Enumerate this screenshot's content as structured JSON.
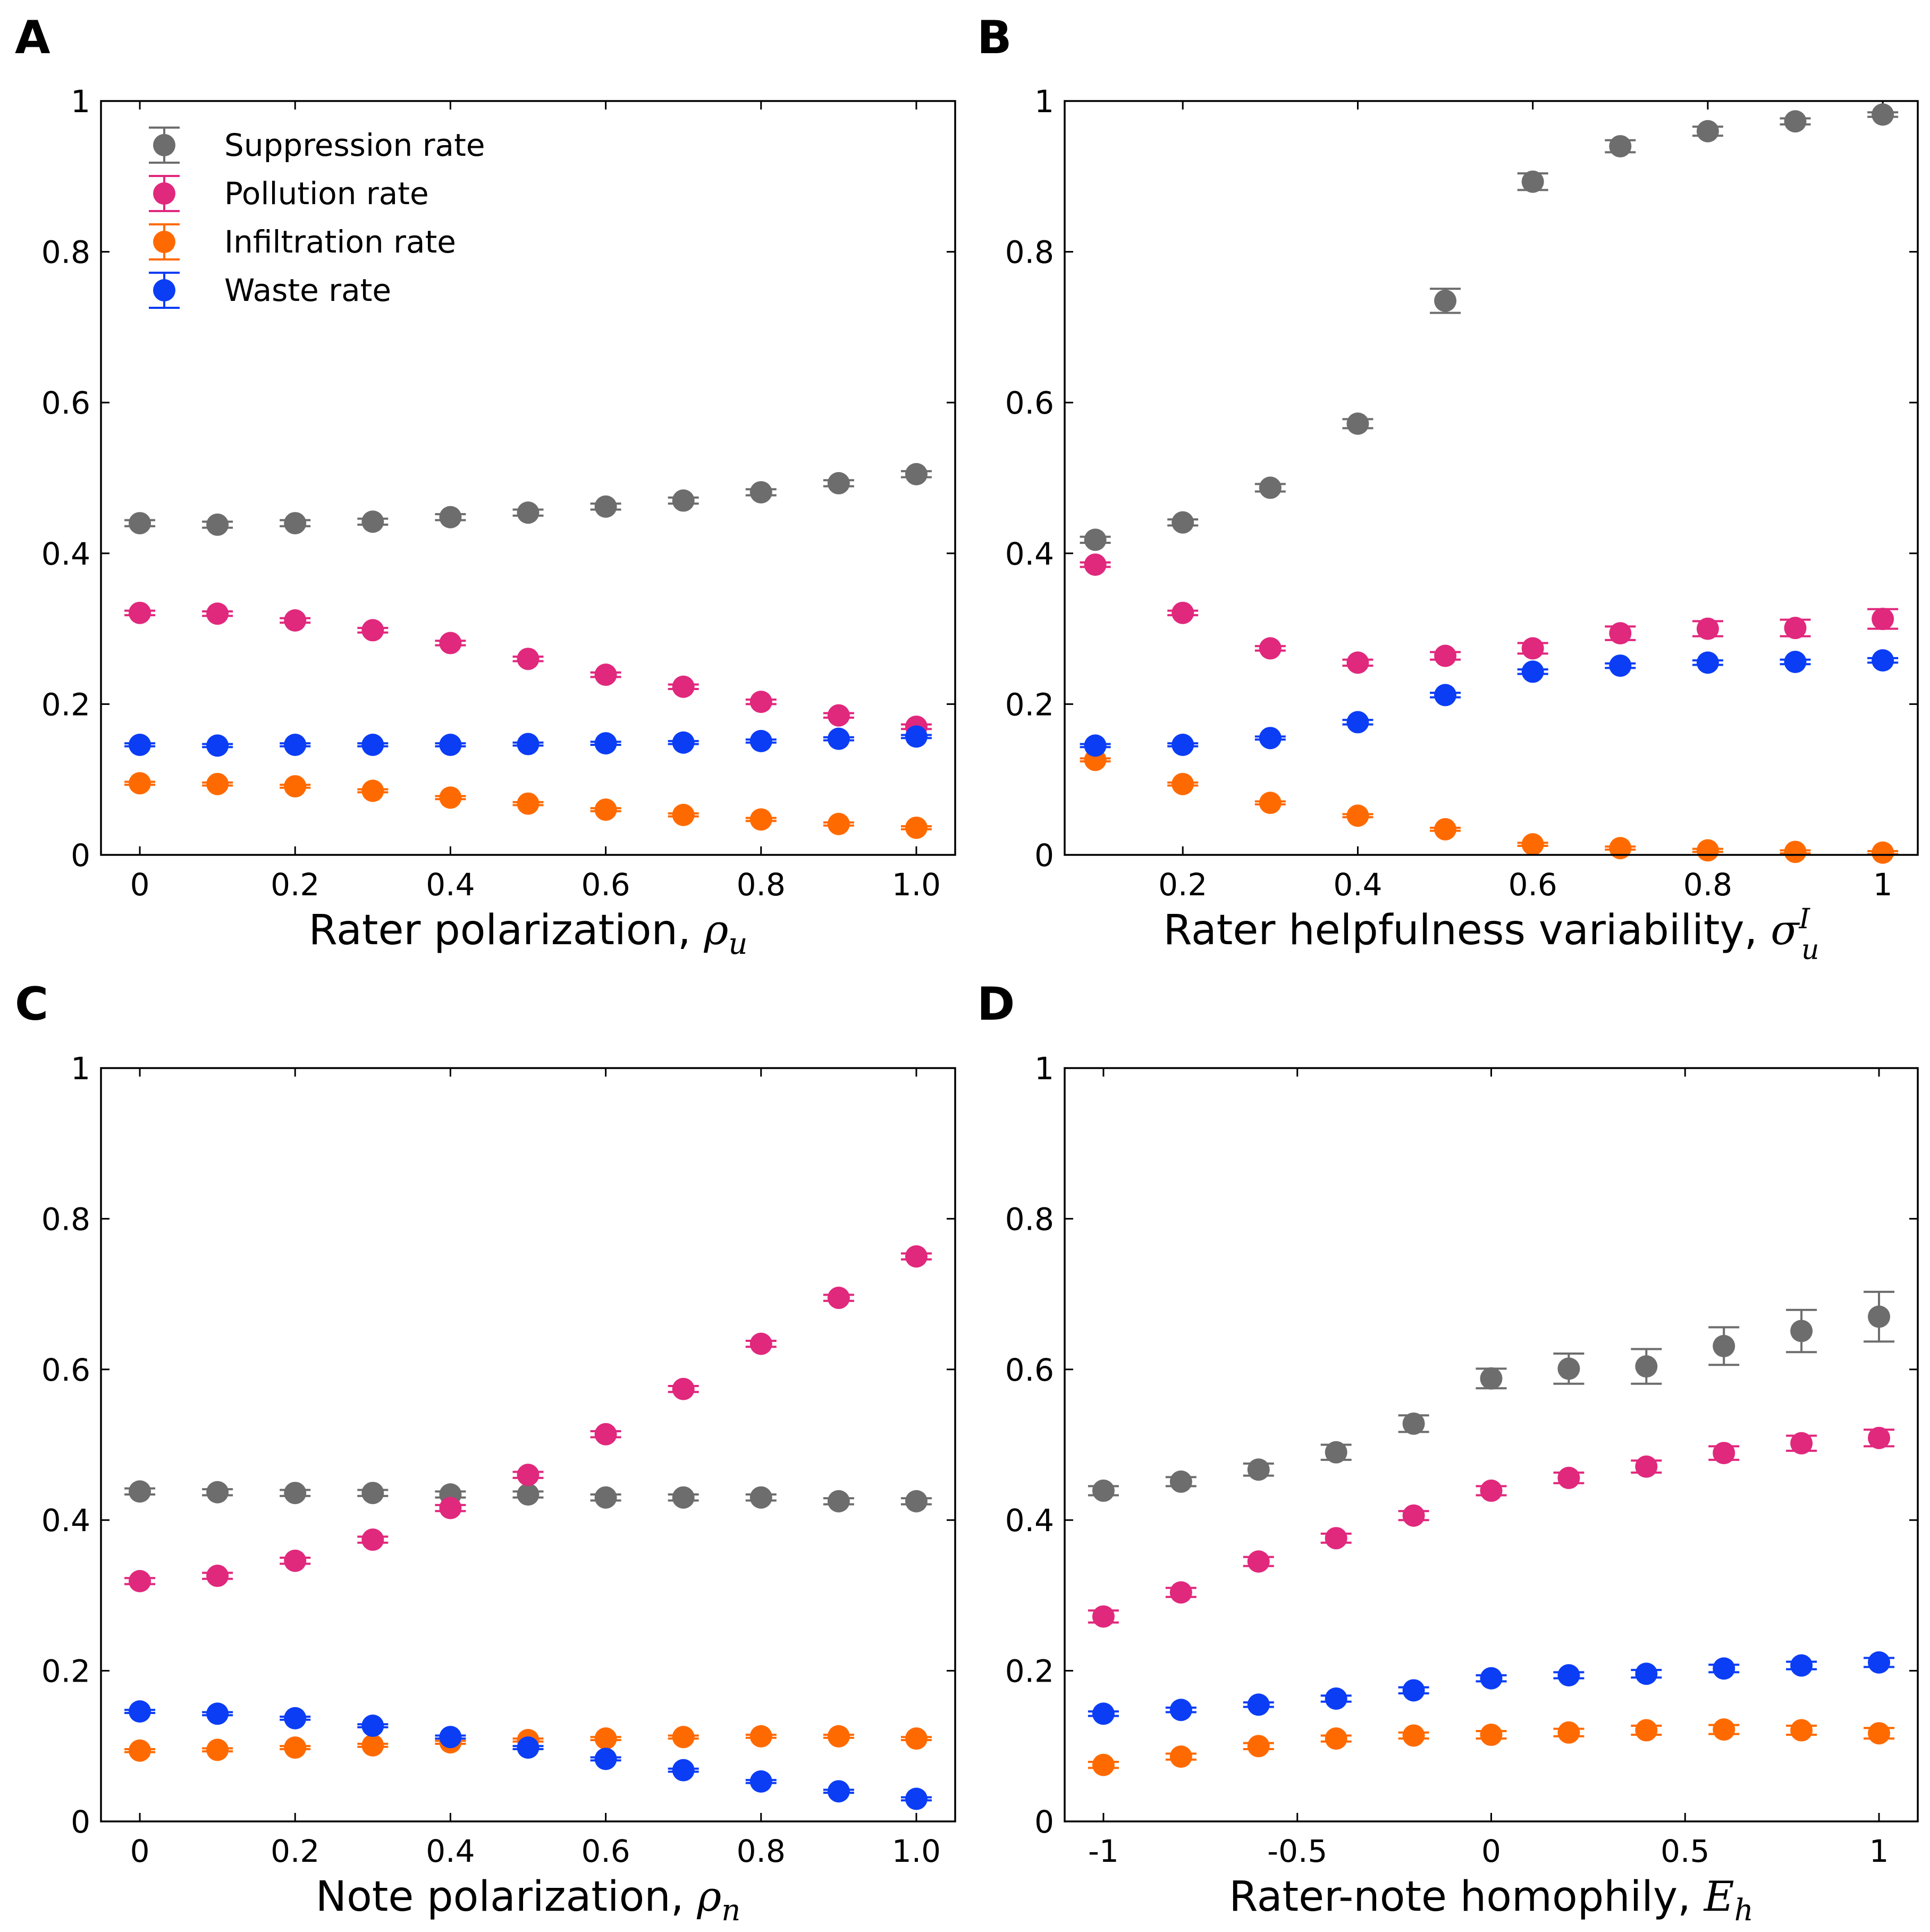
{
  "colors": {
    "suppression": "#6d6d6d",
    "pollution": "#e0287d",
    "infiltration": "#ff6a00",
    "waste": "#0b3df5"
  },
  "legend": {
    "placement": "top-left",
    "entries": [
      {
        "key": "suppression",
        "label": "Suppression rate"
      },
      {
        "key": "pollution",
        "label": "Pollution rate"
      },
      {
        "key": "infiltration",
        "label": "Infiltration rate"
      },
      {
        "key": "waste",
        "label": "Waste rate"
      }
    ]
  },
  "chart_data": [
    {
      "type": "scatter",
      "panel": "A",
      "xlabel_text": "Rater polarization, ",
      "xlabel_symbol": "ρ",
      "xlabel_sub": "u",
      "xlabel_sup": "",
      "xlim": [
        -0.05,
        1.05
      ],
      "ylim": [
        0,
        1
      ],
      "xticks": [
        0,
        0.2,
        0.4,
        0.6,
        0.8,
        1.0
      ],
      "xtick_labels": [
        "0",
        "0.2",
        "0.4",
        "0.6",
        "0.8",
        "1.0"
      ],
      "yticks": [
        0,
        0.2,
        0.4,
        0.6,
        0.8,
        1
      ],
      "ytick_labels": [
        "0",
        "0.2",
        "0.4",
        "0.6",
        "0.8",
        "1"
      ],
      "show_legend": true,
      "x": [
        0,
        0.1,
        0.2,
        0.3,
        0.4,
        0.5,
        0.6,
        0.7,
        0.8,
        0.9,
        1.0
      ],
      "series": [
        {
          "key": "suppression",
          "values": [
            0.44,
            0.438,
            0.44,
            0.442,
            0.448,
            0.454,
            0.462,
            0.47,
            0.481,
            0.493,
            0.505
          ],
          "err": [
            0.004,
            0.004,
            0.004,
            0.004,
            0.004,
            0.004,
            0.004,
            0.004,
            0.004,
            0.004,
            0.004
          ]
        },
        {
          "key": "pollution",
          "values": [
            0.321,
            0.32,
            0.311,
            0.298,
            0.281,
            0.26,
            0.239,
            0.223,
            0.203,
            0.185,
            0.17
          ],
          "err": [
            0.003,
            0.003,
            0.003,
            0.003,
            0.003,
            0.003,
            0.003,
            0.003,
            0.003,
            0.003,
            0.003
          ]
        },
        {
          "key": "infiltration",
          "values": [
            0.095,
            0.094,
            0.091,
            0.085,
            0.076,
            0.068,
            0.06,
            0.053,
            0.047,
            0.041,
            0.036
          ],
          "err": [
            0.002,
            0.002,
            0.002,
            0.002,
            0.002,
            0.002,
            0.002,
            0.002,
            0.002,
            0.002,
            0.002
          ]
        },
        {
          "key": "waste",
          "values": [
            0.146,
            0.145,
            0.146,
            0.146,
            0.146,
            0.147,
            0.148,
            0.149,
            0.151,
            0.154,
            0.157
          ],
          "err": [
            0.002,
            0.002,
            0.002,
            0.002,
            0.002,
            0.002,
            0.002,
            0.002,
            0.002,
            0.002,
            0.002
          ]
        }
      ]
    },
    {
      "type": "scatter",
      "panel": "B",
      "xlabel_text": "Rater helpfulness variability, ",
      "xlabel_symbol": "σ",
      "xlabel_sub": "u",
      "xlabel_sup": "I",
      "xlim": [
        0.065,
        1.04
      ],
      "ylim": [
        0,
        1
      ],
      "xticks": [
        0.2,
        0.4,
        0.6,
        0.8,
        1
      ],
      "xtick_labels": [
        "0.2",
        "0.4",
        "0.6",
        "0.8",
        "1"
      ],
      "yticks": [
        0,
        0.2,
        0.4,
        0.6,
        0.8,
        1
      ],
      "ytick_labels": [
        "0",
        "0.2",
        "0.4",
        "0.6",
        "0.8",
        "1"
      ],
      "show_legend": false,
      "x": [
        0.1,
        0.2,
        0.3,
        0.4,
        0.5,
        0.6,
        0.7,
        0.8,
        0.9,
        1.0
      ],
      "series": [
        {
          "key": "suppression",
          "values": [
            0.418,
            0.441,
            0.487,
            0.572,
            0.735,
            0.893,
            0.94,
            0.96,
            0.973,
            0.982
          ],
          "err": [
            0.004,
            0.004,
            0.005,
            0.006,
            0.016,
            0.011,
            0.008,
            0.006,
            0.004,
            0.003
          ]
        },
        {
          "key": "pollution",
          "values": [
            0.385,
            0.321,
            0.274,
            0.255,
            0.264,
            0.274,
            0.294,
            0.3,
            0.301,
            0.313
          ],
          "err": [
            0.003,
            0.003,
            0.003,
            0.004,
            0.005,
            0.007,
            0.009,
            0.01,
            0.011,
            0.013
          ]
        },
        {
          "key": "infiltration",
          "values": [
            0.126,
            0.094,
            0.069,
            0.052,
            0.034,
            0.014,
            0.009,
            0.006,
            0.004,
            0.003
          ],
          "err": [
            0.002,
            0.002,
            0.002,
            0.002,
            0.002,
            0.002,
            0.002,
            0.002,
            0.002,
            0.002
          ]
        },
        {
          "key": "waste",
          "values": [
            0.145,
            0.146,
            0.155,
            0.176,
            0.212,
            0.243,
            0.251,
            0.255,
            0.256,
            0.258
          ],
          "err": [
            0.002,
            0.002,
            0.002,
            0.003,
            0.003,
            0.003,
            0.003,
            0.003,
            0.003,
            0.003
          ]
        }
      ]
    },
    {
      "type": "scatter",
      "panel": "C",
      "xlabel_text": "Note polarization, ",
      "xlabel_symbol": "ρ",
      "xlabel_sub": "n",
      "xlabel_sup": "",
      "xlim": [
        -0.05,
        1.05
      ],
      "ylim": [
        0,
        1
      ],
      "xticks": [
        0,
        0.2,
        0.4,
        0.6,
        0.8,
        1.0
      ],
      "xtick_labels": [
        "0",
        "0.2",
        "0.4",
        "0.6",
        "0.8",
        "1.0"
      ],
      "yticks": [
        0,
        0.2,
        0.4,
        0.6,
        0.8,
        1
      ],
      "ytick_labels": [
        "0",
        "0.2",
        "0.4",
        "0.6",
        "0.8",
        "1"
      ],
      "show_legend": false,
      "x": [
        0,
        0.1,
        0.2,
        0.3,
        0.4,
        0.5,
        0.6,
        0.7,
        0.8,
        0.9,
        1.0
      ],
      "series": [
        {
          "key": "suppression",
          "values": [
            0.438,
            0.437,
            0.436,
            0.436,
            0.434,
            0.434,
            0.43,
            0.43,
            0.43,
            0.425,
            0.425
          ],
          "err": [
            0.004,
            0.004,
            0.004,
            0.004,
            0.004,
            0.004,
            0.004,
            0.004,
            0.004,
            0.004,
            0.004
          ]
        },
        {
          "key": "pollution",
          "values": [
            0.319,
            0.326,
            0.346,
            0.374,
            0.416,
            0.46,
            0.514,
            0.574,
            0.634,
            0.695,
            0.75
          ],
          "err": [
            0.004,
            0.004,
            0.004,
            0.004,
            0.004,
            0.004,
            0.004,
            0.004,
            0.004,
            0.004,
            0.004
          ]
        },
        {
          "key": "infiltration",
          "values": [
            0.094,
            0.095,
            0.098,
            0.101,
            0.105,
            0.108,
            0.11,
            0.112,
            0.113,
            0.113,
            0.11
          ],
          "err": [
            0.002,
            0.002,
            0.002,
            0.002,
            0.002,
            0.002,
            0.002,
            0.002,
            0.002,
            0.002,
            0.002
          ]
        },
        {
          "key": "waste",
          "values": [
            0.146,
            0.143,
            0.137,
            0.127,
            0.112,
            0.098,
            0.083,
            0.068,
            0.053,
            0.04,
            0.03
          ],
          "err": [
            0.002,
            0.002,
            0.002,
            0.002,
            0.002,
            0.002,
            0.002,
            0.002,
            0.002,
            0.002,
            0.002
          ]
        }
      ]
    },
    {
      "type": "scatter",
      "panel": "D",
      "xlabel_text": "Rater-note homophily, ",
      "xlabel_symbol": "E",
      "xlabel_sub": "h",
      "xlabel_sup": "",
      "xlim": [
        -1.1,
        1.1
      ],
      "ylim": [
        0,
        1
      ],
      "xticks": [
        -1,
        -0.5,
        0,
        0.5,
        1
      ],
      "xtick_labels": [
        "-1",
        "-0.5",
        "0",
        "0.5",
        "1"
      ],
      "yticks": [
        0,
        0.2,
        0.4,
        0.6,
        0.8,
        1
      ],
      "ytick_labels": [
        "0",
        "0.2",
        "0.4",
        "0.6",
        "0.8",
        "1"
      ],
      "show_legend": false,
      "x": [
        -1.0,
        -0.8,
        -0.6,
        -0.4,
        -0.2,
        0.0,
        0.2,
        0.4,
        0.6,
        0.8,
        1.0
      ],
      "series": [
        {
          "key": "suppression",
          "values": [
            0.439,
            0.451,
            0.467,
            0.49,
            0.528,
            0.588,
            0.601,
            0.604,
            0.631,
            0.651,
            0.67
          ],
          "err": [
            0.006,
            0.006,
            0.008,
            0.01,
            0.011,
            0.013,
            0.02,
            0.023,
            0.025,
            0.028,
            0.033
          ]
        },
        {
          "key": "pollution",
          "values": [
            0.272,
            0.304,
            0.345,
            0.376,
            0.406,
            0.439,
            0.456,
            0.471,
            0.489,
            0.502,
            0.509
          ],
          "err": [
            0.008,
            0.006,
            0.006,
            0.006,
            0.006,
            0.006,
            0.007,
            0.008,
            0.009,
            0.01,
            0.011
          ]
        },
        {
          "key": "infiltration",
          "values": [
            0.075,
            0.086,
            0.1,
            0.11,
            0.114,
            0.115,
            0.118,
            0.121,
            0.122,
            0.121,
            0.117
          ],
          "err": [
            0.004,
            0.004,
            0.004,
            0.004,
            0.004,
            0.005,
            0.005,
            0.006,
            0.006,
            0.006,
            0.007
          ]
        },
        {
          "key": "waste",
          "values": [
            0.143,
            0.148,
            0.155,
            0.163,
            0.174,
            0.19,
            0.194,
            0.196,
            0.203,
            0.207,
            0.211
          ],
          "err": [
            0.003,
            0.003,
            0.003,
            0.004,
            0.004,
            0.004,
            0.004,
            0.005,
            0.005,
            0.005,
            0.006
          ]
        }
      ]
    }
  ]
}
